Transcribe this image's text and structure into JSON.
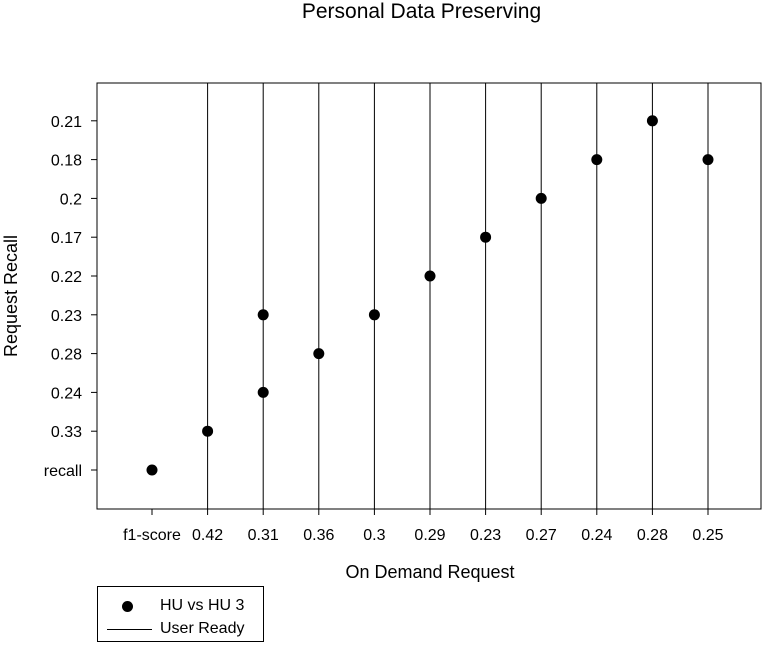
{
  "chart_data": {
    "type": "scatter",
    "title": "Personal Data Preserving",
    "xlabel": "On Demand Request",
    "ylabel": "Request Recall",
    "x_categories": [
      "f1-score",
      "0.42",
      "0.31",
      "0.36",
      "0.3",
      "0.29",
      "0.23",
      "0.27",
      "0.24",
      "0.28",
      "0.25"
    ],
    "y_categories": [
      "recall",
      "0.33",
      "0.24",
      "0.28",
      "0.23",
      "0.22",
      "0.17",
      "0.2",
      "0.18",
      "0.21"
    ],
    "series": [
      {
        "name": "HU vs HU 3",
        "marker": "circle",
        "color": "#000000",
        "points": [
          {
            "x": "f1-score",
            "y": "recall"
          },
          {
            "x": "0.42",
            "y": "0.33"
          },
          {
            "x": "0.31",
            "y": "0.24"
          },
          {
            "x": "0.31",
            "y": "0.23"
          },
          {
            "x": "0.36",
            "y": "0.28"
          },
          {
            "x": "0.3",
            "y": "0.23"
          },
          {
            "x": "0.29",
            "y": "0.22"
          },
          {
            "x": "0.23",
            "y": "0.17"
          },
          {
            "x": "0.27",
            "y": "0.2"
          },
          {
            "x": "0.24",
            "y": "0.18"
          },
          {
            "x": "0.28",
            "y": "0.21"
          },
          {
            "x": "0.25",
            "y": "0.18"
          }
        ]
      },
      {
        "name": "User Ready",
        "mark": "vertical-line",
        "color": "#000000",
        "x": [
          "0.42",
          "0.31",
          "0.36",
          "0.3",
          "0.29",
          "0.23",
          "0.27",
          "0.24",
          "0.28",
          "0.25"
        ]
      }
    ],
    "legend_position": "bottom-left",
    "grid": false
  }
}
